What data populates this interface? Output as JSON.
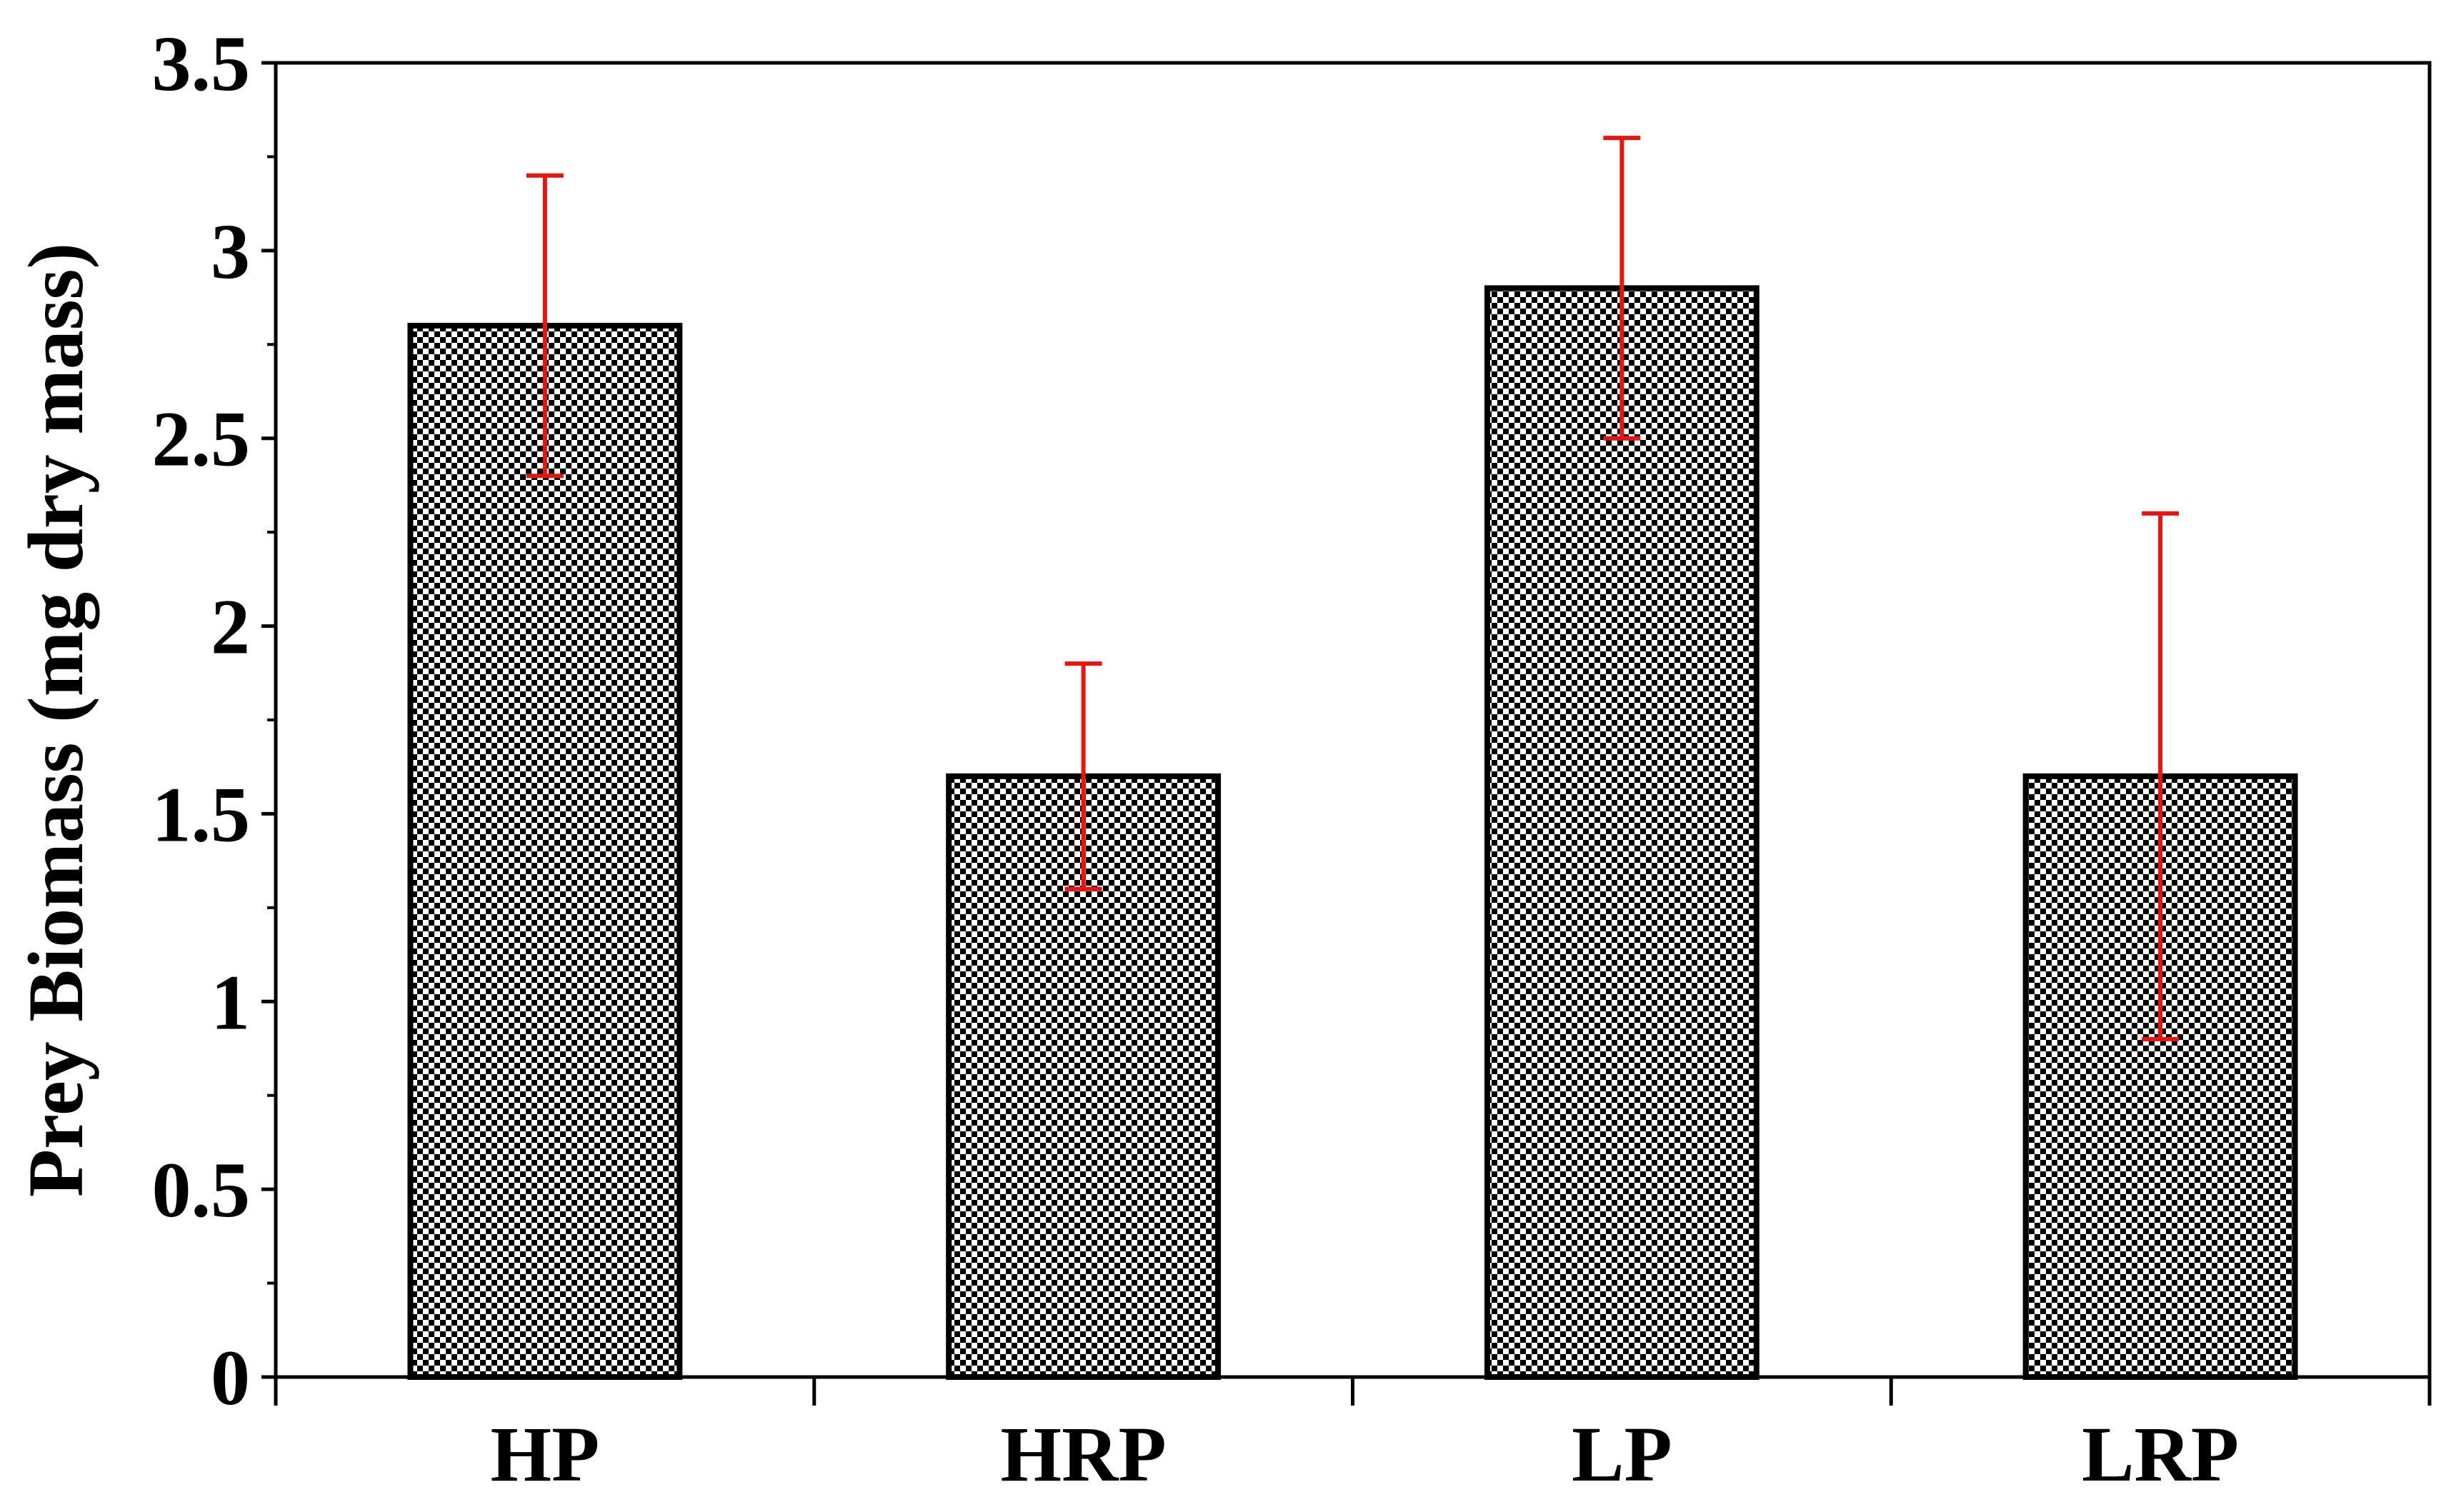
{
  "chart_data": {
    "type": "bar",
    "categories": [
      "HP",
      "HRP",
      "LP",
      "LRP"
    ],
    "values": [
      2.8,
      1.6,
      2.9,
      1.6
    ],
    "error_low": [
      2.4,
      1.3,
      2.5,
      0.9
    ],
    "error_high": [
      3.2,
      1.9,
      3.3,
      2.3
    ],
    "title": "",
    "xlabel": "",
    "ylabel": "Prey Biomass (mg dry mass)",
    "ylim": [
      0,
      3.5
    ],
    "yticks": [
      0,
      0.5,
      1,
      1.5,
      2,
      2.5,
      3,
      3.5
    ],
    "ytick_labels": [
      "0",
      "0.5",
      "1",
      "1.5",
      "2",
      "2.5",
      "3",
      "3.5"
    ],
    "grid": false,
    "legend": "none",
    "bar_fill": "checkerboard black/white",
    "colors": {
      "bar": "#000000",
      "error_bar": "#e8140f",
      "axis": "#000000"
    }
  }
}
